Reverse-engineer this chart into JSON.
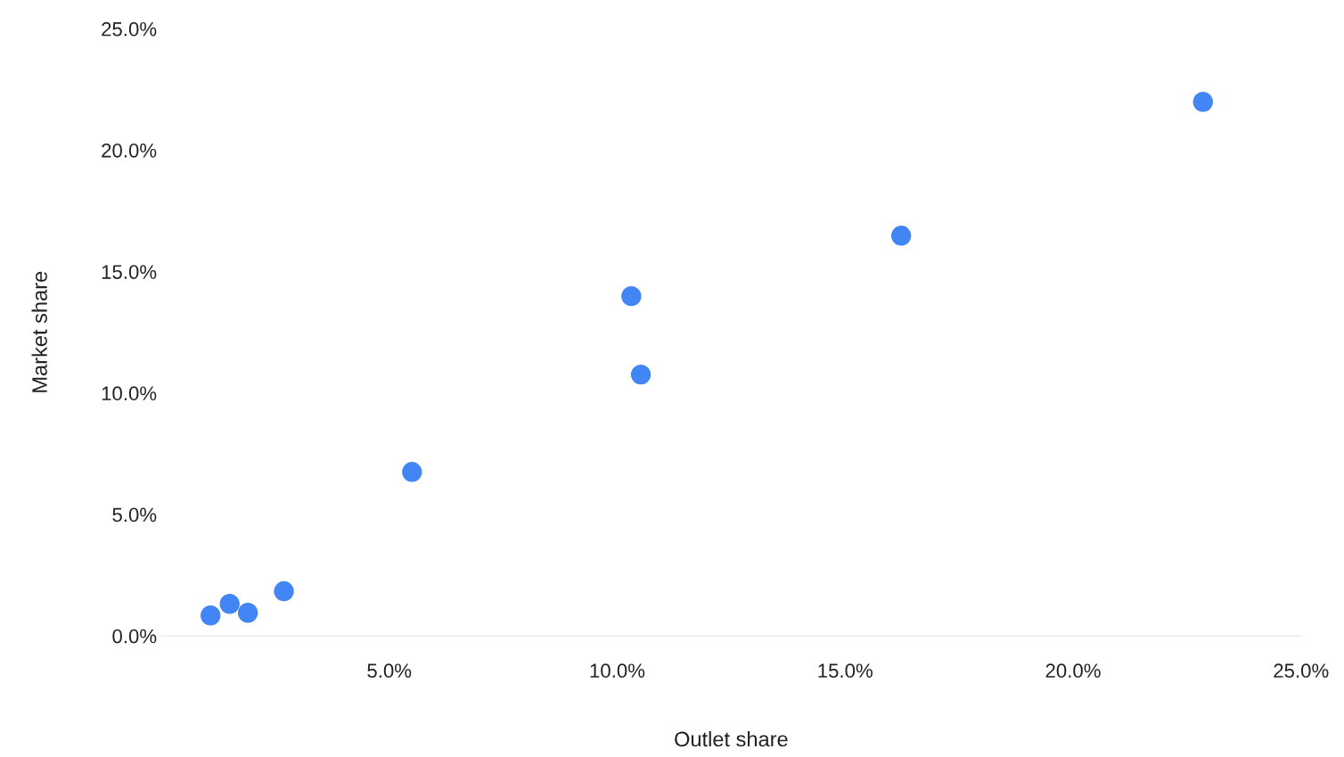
{
  "chart_data": {
    "type": "scatter",
    "xlabel": "Outlet share",
    "ylabel": "Market share",
    "x": [
      1.08,
      1.5,
      1.9,
      2.69,
      5.5,
      10.31,
      10.52,
      16.23,
      22.85
    ],
    "values": [
      0.84,
      1.32,
      0.95,
      1.84,
      6.75,
      13.99,
      10.76,
      16.48,
      21.99
    ],
    "color": "#4285f4",
    "marker": "circle",
    "grid": false,
    "legend": false,
    "xlim": [
      0,
      25
    ],
    "xticks": [
      {
        "value": 5,
        "label": "5.0%"
      },
      {
        "value": 10,
        "label": "10.0%"
      },
      {
        "value": 15,
        "label": "15.0%"
      },
      {
        "value": 20,
        "label": "20.0%"
      },
      {
        "value": 25,
        "label": "25.0%"
      }
    ],
    "ylim": [
      0,
      25
    ],
    "yticks": [
      {
        "value": 0,
        "label": "0.0%"
      },
      {
        "value": 5,
        "label": "5.0%"
      },
      {
        "value": 10,
        "label": "10.0%"
      },
      {
        "value": 15,
        "label": "15.0%"
      },
      {
        "value": 20,
        "label": "20.0%"
      },
      {
        "value": 25,
        "label": "25.0%"
      }
    ]
  }
}
